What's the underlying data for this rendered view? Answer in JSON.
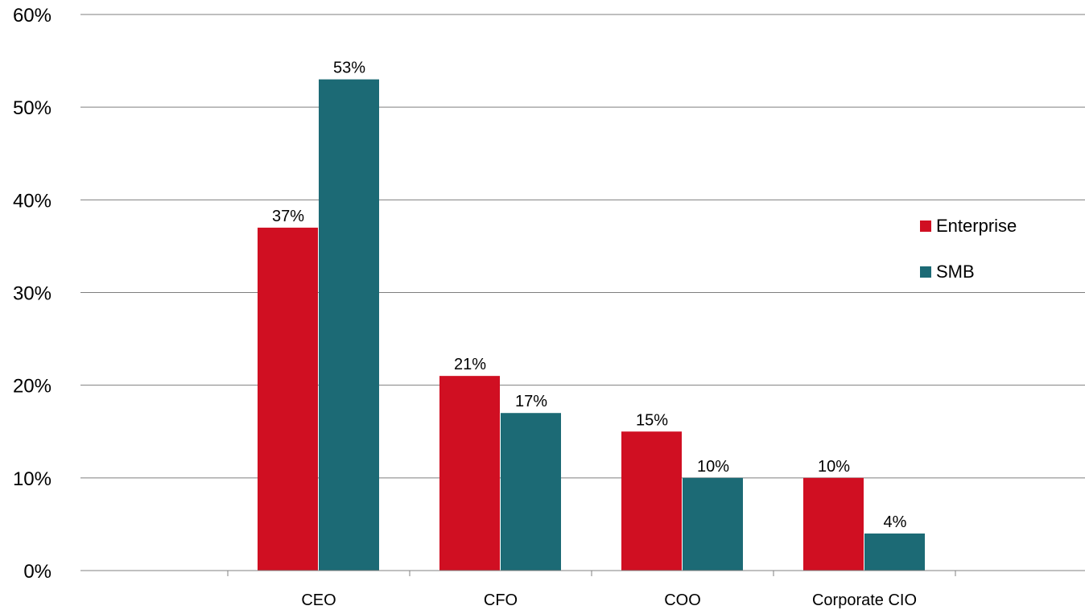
{
  "chart_data": {
    "type": "bar",
    "categories": [
      "CEO",
      "CFO",
      "COO",
      "Corporate CIO"
    ],
    "series": [
      {
        "name": "Enterprise",
        "values": [
          37,
          21,
          15,
          10
        ],
        "labels": [
          "37%",
          "21%",
          "15%",
          "10%"
        ],
        "color": "#d00f22"
      },
      {
        "name": "SMB",
        "values": [
          53,
          17,
          10,
          4
        ],
        "labels": [
          "53%",
          "17%",
          "10%",
          "4%"
        ],
        "color": "#1c6a75"
      }
    ],
    "ylim": [
      0,
      60
    ],
    "yticks": [
      "0%",
      "10%",
      "20%",
      "30%",
      "40%",
      "50%",
      "60%"
    ],
    "grid": true,
    "legend_position": "right"
  }
}
